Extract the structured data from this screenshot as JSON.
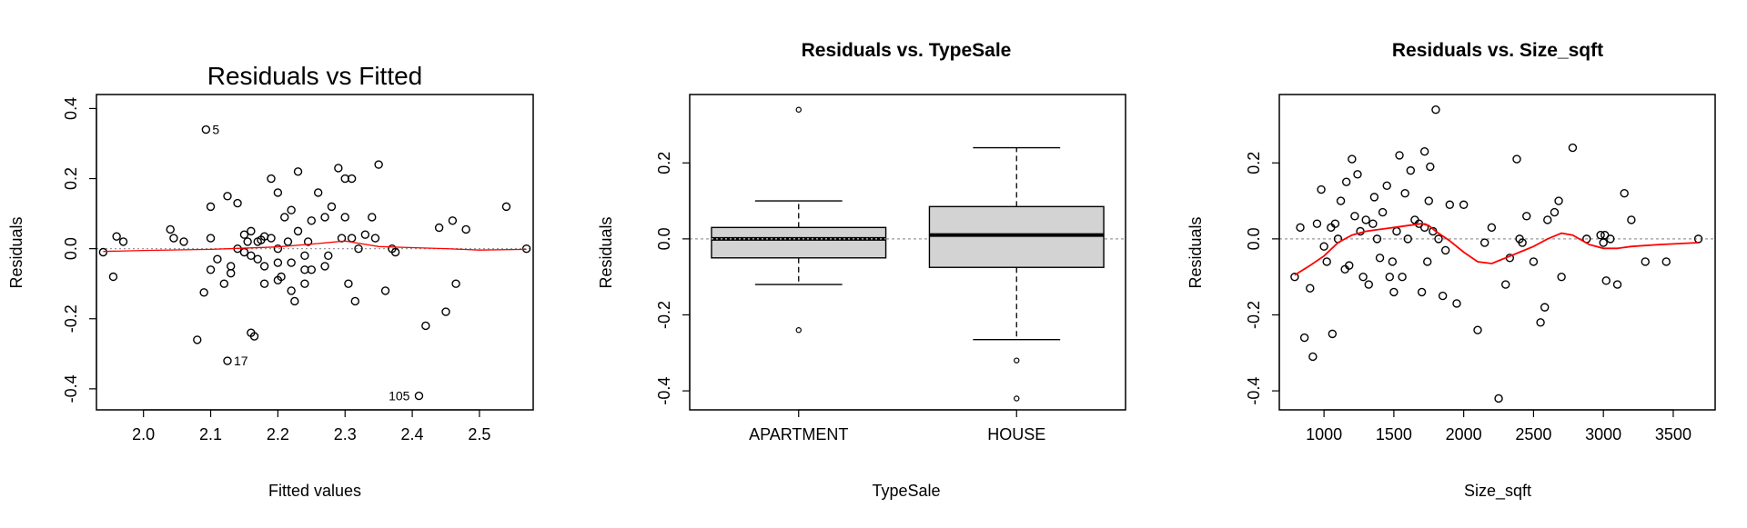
{
  "chart_data": [
    {
      "type": "scatter",
      "title": "Residuals vs Fitted",
      "xlabel": "Fitted values",
      "ylabel": "Residuals",
      "xlim": [
        1.93,
        2.58
      ],
      "ylim": [
        -0.46,
        0.44
      ],
      "xticks": [
        2.0,
        2.1,
        2.2,
        2.3,
        2.4,
        2.5
      ],
      "xtick_labels": [
        "2.0",
        "2.1",
        "2.2",
        "2.3",
        "2.4",
        "2.5"
      ],
      "yticks": [
        -0.4,
        -0.2,
        0.0,
        0.2,
        0.4
      ],
      "ytick_labels": [
        "-0.4",
        "-0.2",
        "0.0",
        "0.2",
        "0.4"
      ],
      "reference_line": 0,
      "smoother_color": "#ff0000",
      "point_labels": [
        {
          "text": "5",
          "x": 2.093,
          "y": 0.34
        },
        {
          "text": "17",
          "x": 2.125,
          "y": -0.32
        },
        {
          "text": "105",
          "x": 2.41,
          "y": -0.42
        }
      ],
      "smoother": {
        "x": [
          1.94,
          2.0,
          2.1,
          2.2,
          2.25,
          2.3,
          2.35,
          2.4,
          2.45,
          2.5,
          2.57
        ],
        "y": [
          -0.008,
          -0.005,
          -0.002,
          0.005,
          0.013,
          0.022,
          0.006,
          0.003,
          0.0,
          -0.004,
          -0.002
        ]
      },
      "points": {
        "x": [
          2.093,
          2.125,
          2.41,
          1.94,
          1.955,
          1.96,
          1.97,
          2.04,
          2.045,
          2.06,
          2.08,
          2.09,
          2.1,
          2.1,
          2.11,
          2.12,
          2.125,
          2.13,
          2.13,
          2.14,
          2.14,
          2.15,
          2.15,
          2.155,
          2.16,
          2.16,
          2.165,
          2.17,
          2.17,
          2.175,
          2.18,
          2.18,
          2.18,
          2.19,
          2.19,
          2.2,
          2.2,
          2.2,
          2.205,
          2.21,
          2.215,
          2.22,
          2.22,
          2.22,
          2.225,
          2.23,
          2.23,
          2.24,
          2.24,
          2.245,
          2.25,
          2.25,
          2.26,
          2.27,
          2.27,
          2.275,
          2.28,
          2.29,
          2.295,
          2.3,
          2.3,
          2.305,
          2.31,
          2.31,
          2.315,
          2.32,
          2.33,
          2.34,
          2.345,
          2.35,
          2.36,
          2.37,
          2.375,
          2.42,
          2.44,
          2.45,
          2.46,
          2.465,
          2.48,
          2.54,
          2.57,
          2.1,
          2.2,
          2.16,
          2.24
        ],
        "y": [
          0.34,
          -0.32,
          -0.42,
          -0.01,
          -0.08,
          0.035,
          0.02,
          0.055,
          0.03,
          0.02,
          -0.26,
          -0.125,
          0.12,
          0.03,
          -0.03,
          -0.1,
          0.15,
          -0.05,
          -0.07,
          0.13,
          0.0,
          -0.01,
          0.04,
          0.02,
          0.05,
          -0.02,
          -0.25,
          0.02,
          -0.03,
          0.025,
          0.035,
          -0.05,
          -0.1,
          0.2,
          0.03,
          -0.09,
          0.16,
          0.0,
          -0.08,
          0.09,
          0.02,
          0.11,
          -0.04,
          -0.12,
          -0.15,
          0.05,
          0.22,
          -0.06,
          -0.1,
          0.02,
          0.08,
          -0.06,
          0.16,
          0.09,
          -0.05,
          -0.02,
          0.12,
          0.23,
          0.03,
          0.09,
          0.2,
          -0.1,
          0.03,
          0.2,
          -0.15,
          0.0,
          0.04,
          0.09,
          0.03,
          0.24,
          -0.12,
          0.0,
          -0.01,
          -0.22,
          0.06,
          -0.18,
          0.08,
          -0.1,
          0.055,
          0.12,
          0.0,
          -0.06,
          -0.04,
          -0.24,
          -0.02
        ]
      }
    },
    {
      "type": "box",
      "title": "Residuals vs. TypeSale",
      "xlabel": "TypeSale",
      "ylabel": "Residuals",
      "ylim": [
        -0.45,
        0.38
      ],
      "yticks": [
        -0.4,
        -0.2,
        0.0,
        0.2
      ],
      "ytick_labels": [
        "-0.4",
        "-0.2",
        "0.0",
        "0.2"
      ],
      "reference_line": 0,
      "box_fill": "#d3d3d3",
      "categories": [
        "APARTMENT",
        "HOUSE"
      ],
      "boxes": [
        {
          "label": "APARTMENT",
          "whisker_low": -0.12,
          "q1": -0.05,
          "median": 0.0,
          "q3": 0.03,
          "whisker_high": 0.1,
          "outliers": [
            0.34,
            -0.24
          ]
        },
        {
          "label": "HOUSE",
          "whisker_low": -0.265,
          "q1": -0.075,
          "median": 0.01,
          "q3": 0.085,
          "whisker_high": 0.24,
          "outliers": [
            -0.32,
            -0.42
          ]
        }
      ]
    },
    {
      "type": "scatter",
      "title": "Residuals vs. Size_sqft",
      "xlabel": "Size_sqft",
      "ylabel": "Residuals",
      "xlim": [
        680,
        3800
      ],
      "ylim": [
        -0.45,
        0.38
      ],
      "xticks": [
        1000,
        1500,
        2000,
        2500,
        3000,
        3500
      ],
      "xtick_labels": [
        "1000",
        "1500",
        "2000",
        "2500",
        "3000",
        "3500"
      ],
      "yticks": [
        -0.4,
        -0.2,
        0.0,
        0.2
      ],
      "ytick_labels": [
        "-0.4",
        "-0.2",
        "0.0",
        "0.2"
      ],
      "reference_line": 0,
      "smoother_color": "#ff0000",
      "smoother": {
        "x": [
          790,
          900,
          1000,
          1100,
          1200,
          1300,
          1400,
          1500,
          1600,
          1700,
          1750,
          1800,
          1900,
          2000,
          2100,
          2200,
          2300,
          2400,
          2500,
          2600,
          2700,
          2780,
          2900,
          3000,
          3100,
          3200,
          3400,
          3680
        ],
        "y": [
          -0.095,
          -0.07,
          -0.045,
          -0.01,
          0.01,
          0.02,
          0.025,
          0.03,
          0.035,
          0.04,
          0.035,
          0.02,
          -0.005,
          -0.035,
          -0.06,
          -0.065,
          -0.05,
          -0.035,
          -0.02,
          0.0,
          0.015,
          0.01,
          -0.015,
          -0.025,
          -0.025,
          -0.02,
          -0.015,
          -0.01
        ]
      },
      "points": {
        "x": [
          790,
          830,
          860,
          900,
          920,
          950,
          980,
          1000,
          1020,
          1050,
          1060,
          1080,
          1100,
          1120,
          1150,
          1160,
          1180,
          1200,
          1220,
          1240,
          1260,
          1280,
          1300,
          1320,
          1350,
          1360,
          1380,
          1400,
          1420,
          1450,
          1470,
          1490,
          1500,
          1520,
          1540,
          1560,
          1580,
          1600,
          1620,
          1650,
          1680,
          1700,
          1720,
          1740,
          1750,
          1760,
          1780,
          1800,
          1820,
          1850,
          1870,
          1900,
          1950,
          2000,
          2100,
          2150,
          2200,
          2250,
          2300,
          2330,
          2380,
          2400,
          2420,
          2450,
          2500,
          2550,
          2580,
          2600,
          2650,
          2680,
          2700,
          2780,
          2880,
          2980,
          3000,
          3010,
          3020,
          3050,
          3100,
          3150,
          3200,
          3300,
          3450,
          3680,
          1720
        ],
        "y": [
          -0.1,
          0.03,
          -0.26,
          -0.13,
          -0.31,
          0.04,
          0.13,
          -0.02,
          -0.06,
          0.03,
          -0.25,
          0.04,
          0.0,
          0.1,
          -0.08,
          0.15,
          -0.07,
          0.21,
          0.06,
          0.17,
          0.02,
          -0.1,
          0.05,
          -0.12,
          0.04,
          0.11,
          0.0,
          -0.05,
          0.07,
          0.14,
          -0.1,
          -0.06,
          -0.14,
          0.02,
          0.22,
          -0.1,
          0.12,
          0.0,
          0.18,
          0.05,
          0.04,
          -0.14,
          0.23,
          -0.06,
          0.1,
          0.19,
          0.02,
          0.34,
          0.0,
          -0.15,
          -0.03,
          0.09,
          -0.17,
          0.09,
          -0.24,
          -0.01,
          0.03,
          -0.42,
          -0.12,
          -0.05,
          0.21,
          0.0,
          -0.01,
          0.06,
          -0.06,
          -0.22,
          -0.18,
          0.05,
          0.07,
          0.1,
          -0.1,
          0.24,
          0.0,
          0.01,
          -0.01,
          0.01,
          -0.11,
          0.0,
          -0.12,
          0.12,
          0.05,
          -0.06,
          -0.06,
          0.0,
          0.03
        ]
      }
    }
  ]
}
